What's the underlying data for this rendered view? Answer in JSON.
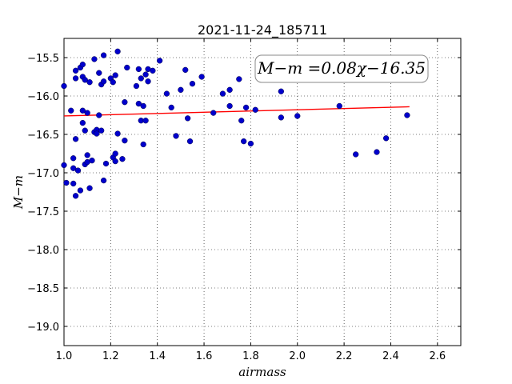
{
  "chart_data": {
    "type": "scatter",
    "title": "2021-11-24_185711",
    "xlabel": "airmass",
    "ylabel": "M−m",
    "xlim": [
      1.0,
      2.7
    ],
    "ylim": [
      -19.25,
      -15.25
    ],
    "x_ticks": [
      1.0,
      1.2,
      1.4,
      1.6,
      1.8,
      2.0,
      2.2,
      2.4,
      2.6
    ],
    "x_tick_labels": [
      "1.0",
      "1.2",
      "1.4",
      "1.6",
      "1.8",
      "2.0",
      "2.2",
      "2.4",
      "2.6"
    ],
    "y_ticks": [
      -15.5,
      -16.0,
      -16.5,
      -17.0,
      -17.5,
      -18.0,
      -18.5,
      -19.0
    ],
    "y_tick_labels": [
      "−15.5",
      "−16.0",
      "−16.5",
      "−17.0",
      "−17.5",
      "−18.0",
      "−18.5",
      "−19.0"
    ],
    "grid": true,
    "annotation": "M−m =0.08χ−16.35",
    "fit_line": {
      "x": [
        1.0,
        2.48
      ],
      "y": [
        -16.26,
        -16.14
      ],
      "color": "#ff0000"
    },
    "points": [
      {
        "x": 1.0,
        "y": -15.87
      },
      {
        "x": 1.0,
        "y": -16.9
      },
      {
        "x": 1.01,
        "y": -17.13
      },
      {
        "x": 1.03,
        "y": -16.19
      },
      {
        "x": 1.04,
        "y": -17.14
      },
      {
        "x": 1.04,
        "y": -16.81
      },
      {
        "x": 1.04,
        "y": -16.94
      },
      {
        "x": 1.05,
        "y": -17.3
      },
      {
        "x": 1.05,
        "y": -16.56
      },
      {
        "x": 1.05,
        "y": -15.77
      },
      {
        "x": 1.05,
        "y": -15.67
      },
      {
        "x": 1.06,
        "y": -16.97
      },
      {
        "x": 1.07,
        "y": -15.63
      },
      {
        "x": 1.07,
        "y": -17.23
      },
      {
        "x": 1.08,
        "y": -15.75
      },
      {
        "x": 1.08,
        "y": -16.35
      },
      {
        "x": 1.08,
        "y": -16.19
      },
      {
        "x": 1.08,
        "y": -15.59
      },
      {
        "x": 1.09,
        "y": -15.79
      },
      {
        "x": 1.09,
        "y": -16.45
      },
      {
        "x": 1.09,
        "y": -16.89
      },
      {
        "x": 1.1,
        "y": -16.86
      },
      {
        "x": 1.1,
        "y": -16.77
      },
      {
        "x": 1.1,
        "y": -16.22
      },
      {
        "x": 1.11,
        "y": -17.2
      },
      {
        "x": 1.11,
        "y": -15.82
      },
      {
        "x": 1.12,
        "y": -16.84
      },
      {
        "x": 1.13,
        "y": -15.52
      },
      {
        "x": 1.13,
        "y": -16.47
      },
      {
        "x": 1.14,
        "y": -16.44
      },
      {
        "x": 1.14,
        "y": -16.49
      },
      {
        "x": 1.15,
        "y": -16.25
      },
      {
        "x": 1.15,
        "y": -15.7
      },
      {
        "x": 1.16,
        "y": -15.85
      },
      {
        "x": 1.16,
        "y": -16.45
      },
      {
        "x": 1.17,
        "y": -15.47
      },
      {
        "x": 1.17,
        "y": -15.81
      },
      {
        "x": 1.17,
        "y": -17.1
      },
      {
        "x": 1.18,
        "y": -16.88
      },
      {
        "x": 1.2,
        "y": -15.77
      },
      {
        "x": 1.21,
        "y": -15.82
      },
      {
        "x": 1.21,
        "y": -16.8
      },
      {
        "x": 1.22,
        "y": -16.85
      },
      {
        "x": 1.22,
        "y": -15.73
      },
      {
        "x": 1.22,
        "y": -16.75
      },
      {
        "x": 1.23,
        "y": -15.42
      },
      {
        "x": 1.23,
        "y": -16.49
      },
      {
        "x": 1.25,
        "y": -16.82
      },
      {
        "x": 1.26,
        "y": -16.58
      },
      {
        "x": 1.26,
        "y": -16.08
      },
      {
        "x": 1.27,
        "y": -15.63
      },
      {
        "x": 1.31,
        "y": -15.87
      },
      {
        "x": 1.32,
        "y": -15.65
      },
      {
        "x": 1.32,
        "y": -16.1
      },
      {
        "x": 1.33,
        "y": -16.32
      },
      {
        "x": 1.33,
        "y": -15.77
      },
      {
        "x": 1.34,
        "y": -16.13
      },
      {
        "x": 1.34,
        "y": -16.63
      },
      {
        "x": 1.35,
        "y": -15.72
      },
      {
        "x": 1.35,
        "y": -16.32
      },
      {
        "x": 1.36,
        "y": -15.81
      },
      {
        "x": 1.36,
        "y": -15.65
      },
      {
        "x": 1.38,
        "y": -15.67
      },
      {
        "x": 1.41,
        "y": -15.54
      },
      {
        "x": 1.44,
        "y": -15.97
      },
      {
        "x": 1.46,
        "y": -16.15
      },
      {
        "x": 1.48,
        "y": -16.52
      },
      {
        "x": 1.5,
        "y": -15.92
      },
      {
        "x": 1.52,
        "y": -15.66
      },
      {
        "x": 1.53,
        "y": -16.29
      },
      {
        "x": 1.54,
        "y": -16.59
      },
      {
        "x": 1.55,
        "y": -15.84
      },
      {
        "x": 1.59,
        "y": -15.75
      },
      {
        "x": 1.64,
        "y": -16.22
      },
      {
        "x": 1.68,
        "y": -15.97
      },
      {
        "x": 1.71,
        "y": -16.13
      },
      {
        "x": 1.71,
        "y": -15.92
      },
      {
        "x": 1.75,
        "y": -15.78
      },
      {
        "x": 1.76,
        "y": -16.32
      },
      {
        "x": 1.77,
        "y": -16.59
      },
      {
        "x": 1.78,
        "y": -16.15
      },
      {
        "x": 1.8,
        "y": -16.62
      },
      {
        "x": 1.82,
        "y": -16.18
      },
      {
        "x": 1.93,
        "y": -15.94
      },
      {
        "x": 1.93,
        "y": -16.28
      },
      {
        "x": 2.0,
        "y": -16.26
      },
      {
        "x": 2.18,
        "y": -16.13
      },
      {
        "x": 2.25,
        "y": -16.76
      },
      {
        "x": 2.34,
        "y": -16.73
      },
      {
        "x": 2.38,
        "y": -16.55
      },
      {
        "x": 2.47,
        "y": -16.25
      }
    ]
  }
}
